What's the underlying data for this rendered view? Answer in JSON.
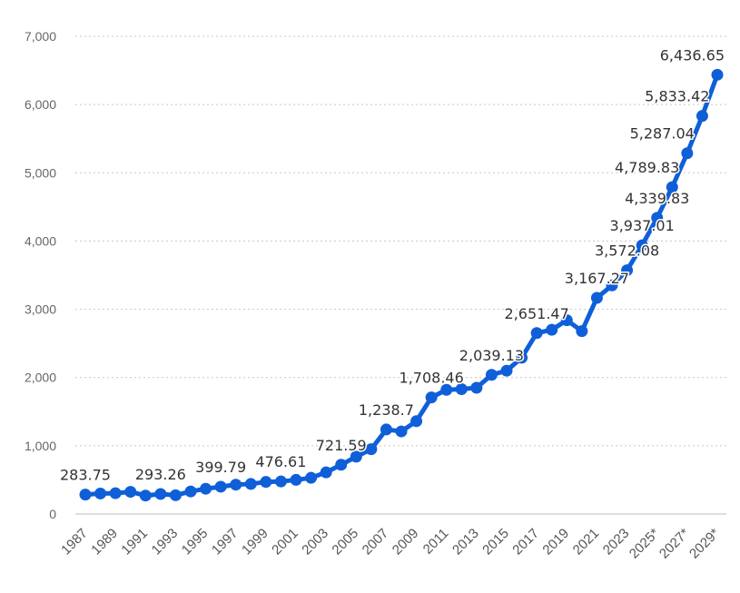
{
  "chart_data": {
    "type": "line",
    "title": "",
    "xlabel": "",
    "ylabel": "",
    "ylim": [
      0,
      7000
    ],
    "y_ticks": [
      0,
      1000,
      2000,
      3000,
      4000,
      5000,
      6000,
      7000
    ],
    "y_tick_labels": [
      "0",
      "1,000",
      "2,000",
      "3,000",
      "4,000",
      "5,000",
      "6,000",
      "7,000"
    ],
    "grid": true,
    "legend": "none",
    "x": [
      1987,
      1988,
      1989,
      1990,
      1991,
      1992,
      1993,
      1994,
      1995,
      1996,
      1997,
      1998,
      1999,
      2000,
      2001,
      2002,
      2003,
      2004,
      2005,
      2006,
      2007,
      2008,
      2009,
      2010,
      2011,
      2012,
      2013,
      2014,
      2015,
      2016,
      2017,
      2018,
      2019,
      2020,
      2021,
      2022,
      2023,
      2024,
      2025,
      2026,
      2027,
      2028,
      2029
    ],
    "x_tick_labels": [
      "1987",
      "1989",
      "1991",
      "1993",
      "1995",
      "1997",
      "1999",
      "2001",
      "2003",
      "2005",
      "2007",
      "2009",
      "2011",
      "2013",
      "2015",
      "2017",
      "2019",
      "2021",
      "2023",
      "2025*",
      "2027*",
      "2029*"
    ],
    "x_tick_years": [
      1987,
      1989,
      1991,
      1993,
      1995,
      1997,
      1999,
      2001,
      2003,
      2005,
      2007,
      2009,
      2011,
      2013,
      2015,
      2017,
      2019,
      2021,
      2023,
      2025,
      2027,
      2029
    ],
    "series": [
      {
        "values": [
          283.75,
          300,
          305,
          325,
          270,
          293.26,
          275,
          330,
          370,
          399.79,
          430,
          440,
          470,
          476.61,
          500,
          530,
          610,
          721.59,
          840,
          950,
          1238.7,
          1210,
          1360,
          1708.46,
          1820,
          1830,
          1850,
          2039.13,
          2100,
          2290,
          2651.47,
          2700,
          2840,
          2680,
          3167.27,
          3350,
          3572.08,
          3937.01,
          4339.83,
          4789.83,
          5287.04,
          5833.42,
          6436.65
        ],
        "color": "#0f5fd8"
      }
    ],
    "data_labels": [
      {
        "year": 1987,
        "text": "283.75"
      },
      {
        "year": 1992,
        "text": "293.26"
      },
      {
        "year": 1996,
        "text": "399.79"
      },
      {
        "year": 2000,
        "text": "476.61"
      },
      {
        "year": 2004,
        "text": "721.59"
      },
      {
        "year": 2007,
        "text": "1,238.7"
      },
      {
        "year": 2010,
        "text": "1,708.46"
      },
      {
        "year": 2014,
        "text": "2,039.13"
      },
      {
        "year": 2017,
        "text": "2,651.47"
      },
      {
        "year": 2021,
        "text": "3,167.27"
      },
      {
        "year": 2023,
        "text": "3,572.08"
      },
      {
        "year": 2024,
        "text": "3,937.01"
      },
      {
        "year": 2025,
        "text": "4,339.83"
      },
      {
        "year": 2026,
        "text": "4,789.83"
      },
      {
        "year": 2027,
        "text": "5,287.04"
      },
      {
        "year": 2028,
        "text": "5,833.42"
      },
      {
        "year": 2029,
        "text": "6,436.65"
      }
    ]
  }
}
